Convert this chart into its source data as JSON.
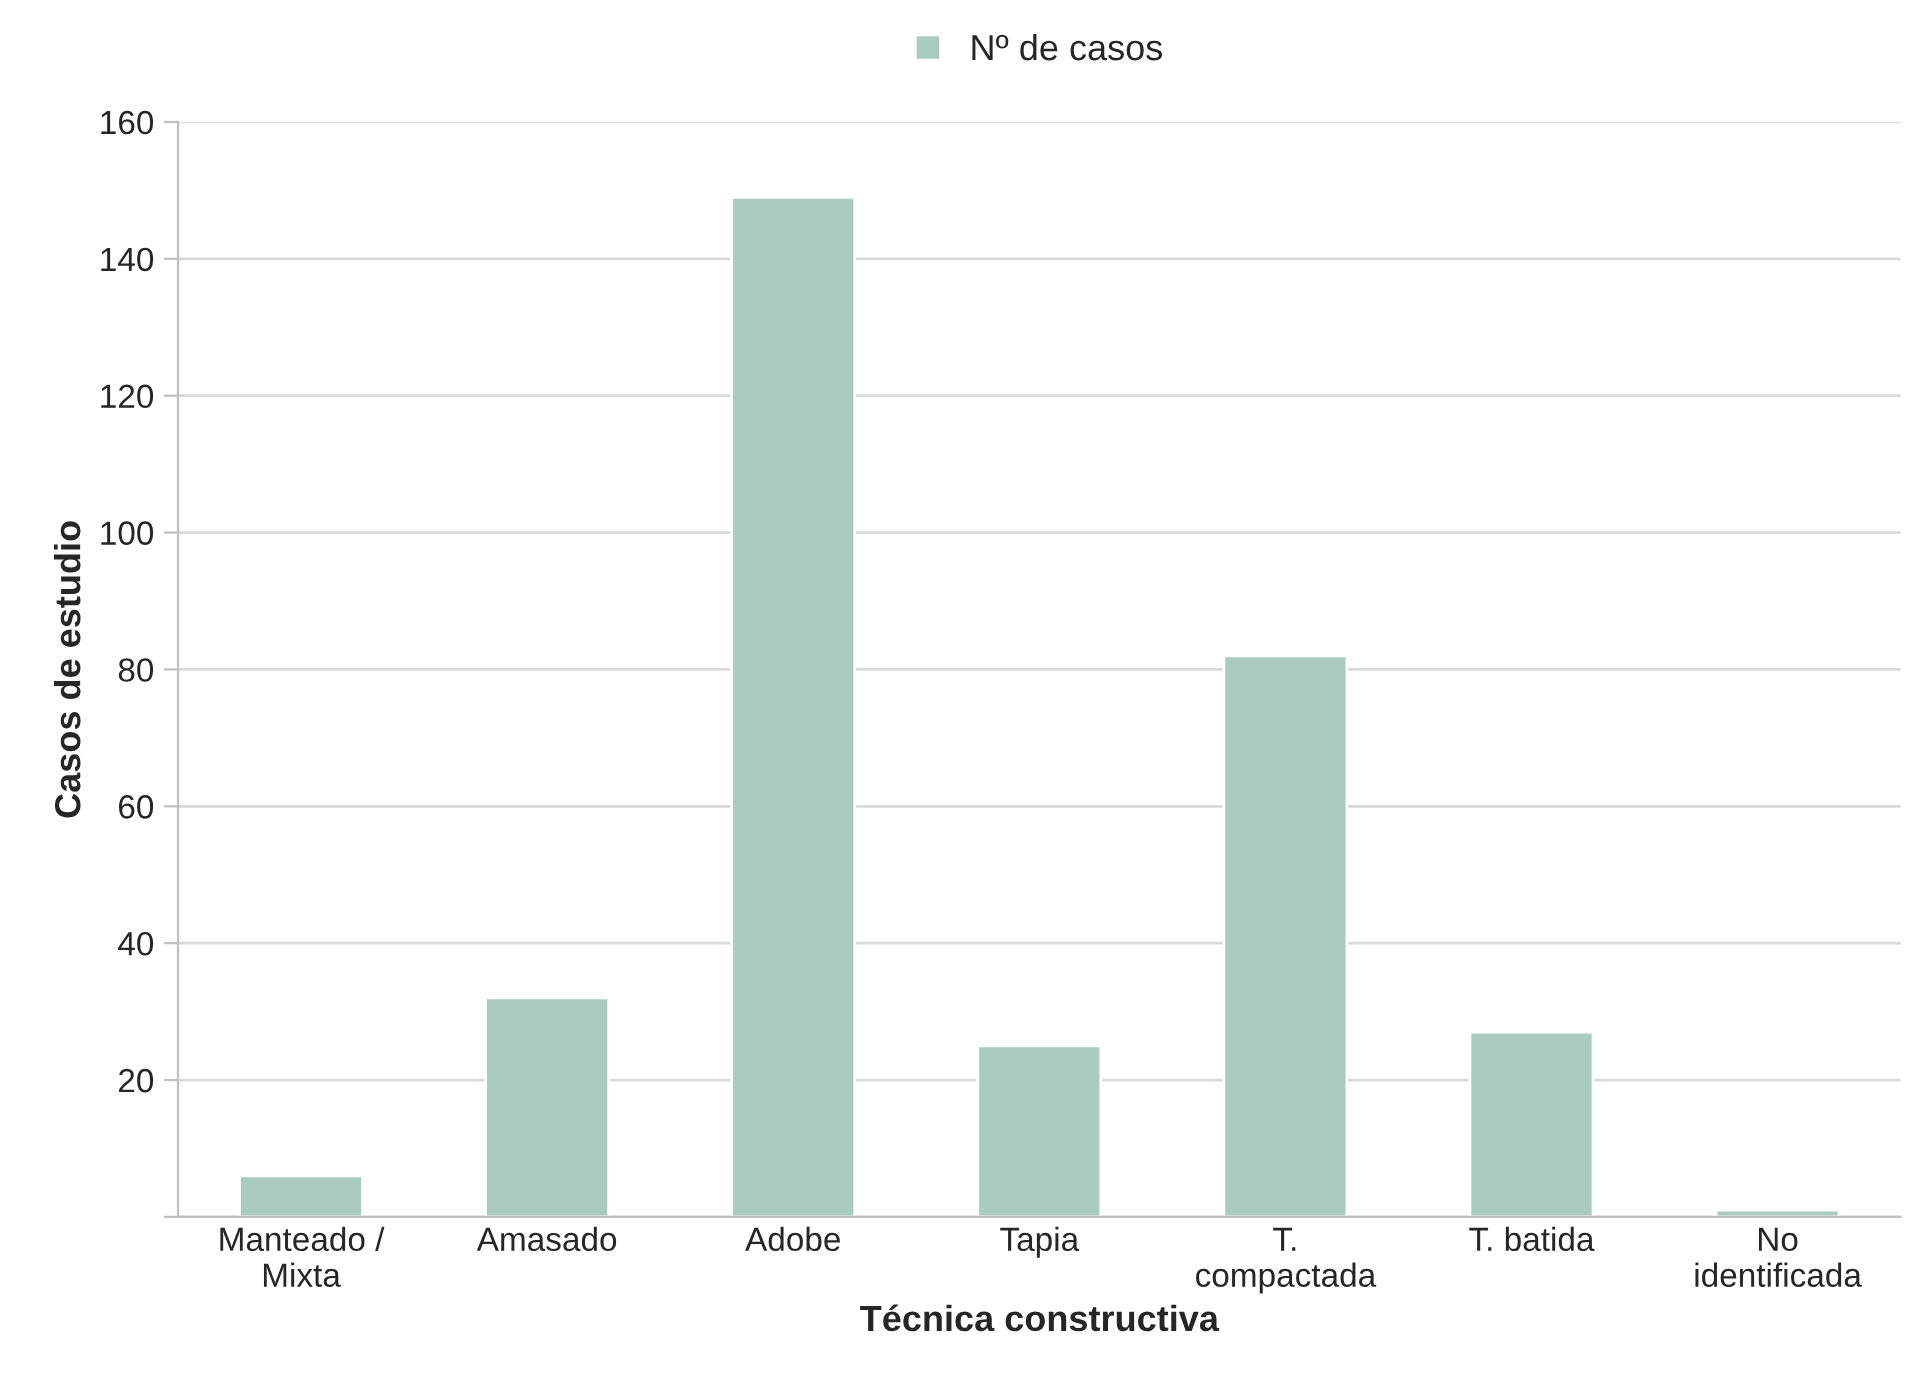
{
  "chart_data": {
    "type": "bar",
    "xlabel": "Técnica constructiva",
    "ylabel": "Casos de estudio",
    "categories": [
      "Manteado /\nMixta",
      "Amasado",
      "Adobe",
      "Tapia",
      "T.\ncompactada",
      "T. batida",
      "No\nidentificada"
    ],
    "series": [
      {
        "name": "Nº de casos",
        "color": "#a9cbc0",
        "values": [
          6,
          32,
          149,
          25,
          82,
          27,
          1
        ]
      }
    ],
    "ylim": [
      0,
      160
    ],
    "yticks": [
      {
        "value": 0,
        "label": null
      },
      20,
      40,
      60,
      80,
      100,
      120,
      140,
      160
    ],
    "grid": "y",
    "legend": "top"
  }
}
